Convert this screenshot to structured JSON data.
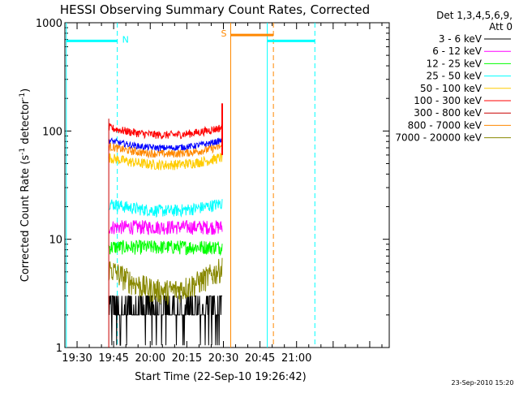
{
  "chart_data": {
    "type": "line",
    "title": "HESSI Observing Summary Count Rates, Corrected",
    "xlabel": "Start Time (22-Sep-10 19:26:42)",
    "ylabel_main": "Corrected Count Rate (s",
    "ylabel_sup1": "-1",
    "ylabel_mid": " detector",
    "ylabel_sup2": "-1",
    "ylabel_end": ")",
    "timestamp": "23-Sep-2010 15:20",
    "yscale": "log",
    "ylim": [
      1,
      1000
    ],
    "xlim_minutes": [
      1165,
      1298
    ],
    "x_ticks": [
      {
        "m": 1170,
        "label": "19:30"
      },
      {
        "m": 1185,
        "label": "19:45"
      },
      {
        "m": 1200,
        "label": "20:00"
      },
      {
        "m": 1215,
        "label": "20:15"
      },
      {
        "m": 1230,
        "label": "20:30"
      },
      {
        "m": 1245,
        "label": "20:45"
      },
      {
        "m": 1260,
        "label": "21:00"
      }
    ],
    "y_ticks": [
      {
        "v": 1,
        "label": "1"
      },
      {
        "v": 10,
        "label": "10"
      },
      {
        "v": 100,
        "label": "100"
      },
      {
        "v": 1000,
        "label": "1000"
      }
    ],
    "legend_header": [
      "Det 1,3,4,5,6,9,",
      "Att 0"
    ],
    "legend_position": "right outside",
    "series": [
      {
        "name": "3 - 6 keV",
        "color": "#000000",
        "base": 2.4,
        "noise": 0.4,
        "shape": "black"
      },
      {
        "name": "6 - 12 keV",
        "color": "#ff00ff",
        "base": 13,
        "noise": 0.07,
        "shape": "flat"
      },
      {
        "name": "12 - 25 keV",
        "color": "#00ff00",
        "base": 8.5,
        "noise": 0.07,
        "shape": "flat"
      },
      {
        "name": "25 - 50 keV",
        "color": "#00ffff",
        "base": 20,
        "noise": 0.06,
        "shape": "u"
      },
      {
        "name": "50 - 100 keV",
        "color": "#ffcc00",
        "base": 53,
        "noise": 0.05,
        "shape": "u"
      },
      {
        "name": "100 - 300 keV",
        "color": "#ff0000",
        "base": 100,
        "noise": 0.04,
        "shape": "u"
      },
      {
        "name": "300 - 800 keV",
        "color": "#c80000",
        "base": 0,
        "noise": 0,
        "shape": "none"
      },
      {
        "name": "800 - 7000 keV",
        "color": "#ff8800",
        "base": 67,
        "noise": 0.04,
        "shape": "u"
      },
      {
        "name": "7000 - 20000 keV",
        "color": "#888800",
        "base": 4.2,
        "noise": 0.12,
        "shape": "deep"
      }
    ],
    "blue_series": {
      "color": "#0000ff",
      "base": 76,
      "noise": 0.03
    },
    "data_range_minutes": [
      1183,
      1229.5
    ],
    "markers": [
      {
        "type": "solid",
        "color": "#00ffff",
        "m": 1165.6
      },
      {
        "type": "dashed",
        "color": "#00ffff",
        "m": 1186.5
      },
      {
        "type": "solid",
        "color": "#00ffff",
        "m": 1248
      },
      {
        "type": "dashed",
        "color": "#00ffff",
        "m": 1267.5
      },
      {
        "type": "solid",
        "color": "#ff8800",
        "m": 1233
      },
      {
        "type": "dashed",
        "color": "#ff8800",
        "m": 1250.5
      }
    ],
    "flag_bars": [
      {
        "color": "#00ffff",
        "from": 1165.6,
        "to": 1186.5,
        "value": 680,
        "label": "N"
      },
      {
        "color": "#00ffff",
        "from": 1248,
        "to": 1267.5,
        "value": 680,
        "label": ""
      },
      {
        "color": "#ff8800",
        "from": 1233,
        "to": 1250.5,
        "value": 770,
        "label": "S"
      }
    ]
  }
}
